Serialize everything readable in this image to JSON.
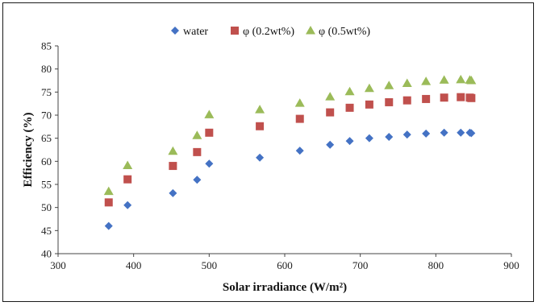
{
  "chart_data": {
    "type": "scatter",
    "xlabel": "Solar irradiance (W/m²)",
    "ylabel": "Efficiency (%)",
    "xlim": [
      300,
      900
    ],
    "ylim": [
      40,
      85
    ],
    "xticks": [
      300,
      400,
      500,
      600,
      700,
      800,
      900
    ],
    "yticks": [
      40,
      45,
      50,
      55,
      60,
      65,
      70,
      75,
      80,
      85
    ],
    "grid": false,
    "legend": "top-center",
    "series": [
      {
        "name": "water",
        "marker": "diamond",
        "color": "#4472C4",
        "x": [
          367,
          392,
          452,
          484,
          500,
          567,
          620,
          660,
          686,
          712,
          738,
          762,
          787,
          811,
          833,
          845,
          847
        ],
        "y": [
          46.0,
          50.5,
          53.1,
          56.0,
          59.5,
          60.8,
          62.3,
          63.6,
          64.4,
          65.0,
          65.3,
          65.8,
          66.0,
          66.2,
          66.2,
          66.2,
          66.1
        ]
      },
      {
        "name": "φ  (0.2wt%)",
        "marker": "square",
        "color": "#C0504D",
        "x": [
          367,
          392,
          452,
          484,
          500,
          567,
          620,
          660,
          686,
          712,
          738,
          762,
          787,
          811,
          833,
          845,
          847
        ],
        "y": [
          51.1,
          56.1,
          59.0,
          62.0,
          66.2,
          67.6,
          69.2,
          70.6,
          71.6,
          72.3,
          72.8,
          73.2,
          73.5,
          73.8,
          73.9,
          73.8,
          73.7
        ]
      },
      {
        "name": "φ  (0.5wt%)",
        "marker": "triangle",
        "color": "#9BBB59",
        "x": [
          367,
          392,
          452,
          484,
          500,
          567,
          620,
          660,
          686,
          712,
          738,
          762,
          787,
          811,
          833,
          845,
          847
        ],
        "y": [
          53.5,
          59.1,
          62.2,
          65.6,
          70.1,
          71.2,
          72.6,
          74.0,
          75.1,
          75.8,
          76.4,
          76.9,
          77.3,
          77.6,
          77.7,
          77.6,
          77.5
        ]
      }
    ]
  }
}
